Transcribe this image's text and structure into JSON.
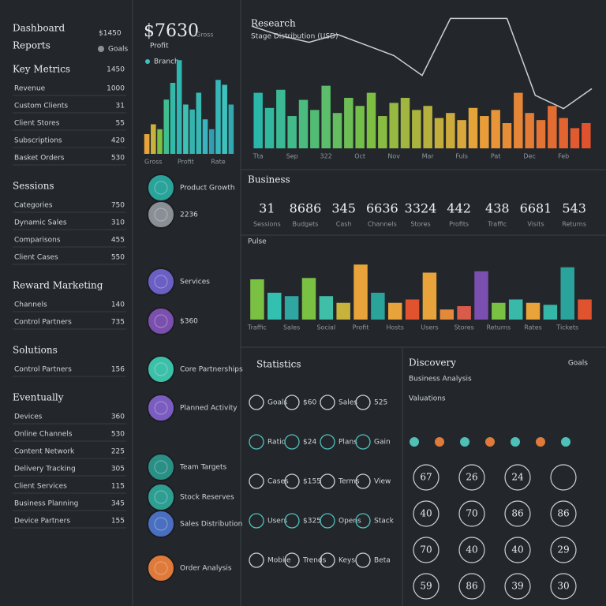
{
  "sidebar": {
    "title": "Dashboard",
    "title_value": "$1450",
    "subtitle": "Reports",
    "subtitle_value": "Goals",
    "sections": [
      {
        "heading": "Key Metrics",
        "heading_value": "1450",
        "items": [
          {
            "label": "Revenue",
            "value": "1000"
          },
          {
            "label": "Custom Clients",
            "value": "31"
          },
          {
            "label": "Client Stores",
            "value": "55"
          },
          {
            "label": "Subscriptions",
            "value": "420"
          },
          {
            "label": "Basket Orders",
            "value": "530"
          }
        ]
      },
      {
        "heading": "Sessions",
        "items": [
          {
            "label": "Categories",
            "value": "750"
          },
          {
            "label": "Dynamic Sales",
            "value": "310"
          },
          {
            "label": "Comparisons",
            "value": "455"
          },
          {
            "label": "Client Cases",
            "value": "550"
          }
        ]
      },
      {
        "heading": "Reward Marketing",
        "items": [
          {
            "label": "Channels",
            "value": "140"
          },
          {
            "label": "Control Partners",
            "value": "735"
          }
        ]
      },
      {
        "heading": "Solutions",
        "items": [
          {
            "label": "Control Partners",
            "value": "156"
          }
        ]
      },
      {
        "heading": "Eventually",
        "items": [
          {
            "label": "Devices",
            "value": "360"
          },
          {
            "label": "Online Channels",
            "value": "530"
          },
          {
            "label": "Content Network",
            "value": "225"
          },
          {
            "label": "Delivery Tracking",
            "value": "305"
          },
          {
            "label": "Client Services",
            "value": "115"
          },
          {
            "label": "Business Planning",
            "value": "345"
          },
          {
            "label": "Device Partners",
            "value": "155"
          }
        ]
      }
    ]
  },
  "summary": {
    "value": "$7630",
    "value_note": "Gross",
    "label": "Profit",
    "legend": "Branch"
  },
  "circle_items": [
    {
      "label": "Product Growth",
      "color": "#2aa39a"
    },
    {
      "label": "2236",
      "color": "#8a8f96"
    },
    {
      "label": "Services",
      "color": "#6b5fc4"
    },
    {
      "label": "$360",
      "color": "#7a4fae"
    },
    {
      "label": "Core Partnerships",
      "color": "#3cc1a8"
    },
    {
      "label": "Planned Activity",
      "color": "#7b5cc0"
    },
    {
      "label": "Team Targets",
      "color": "#2a8f85"
    },
    {
      "label": "Stock Reserves",
      "color": "#2f9e92"
    },
    {
      "label": "Sales Distribution",
      "color": "#4a6fc0"
    },
    {
      "label": "Order Analysis",
      "color": "#e07a3a"
    }
  ],
  "chart_data": [
    {
      "type": "bar",
      "categories": [
        null,
        "Gross",
        null,
        null,
        null,
        null,
        "Profit",
        null,
        null,
        null,
        null,
        "Rate",
        null,
        null
      ],
      "values": [
        20,
        30,
        25,
        55,
        72,
        95,
        50,
        45,
        62,
        35,
        25,
        75,
        70,
        50
      ],
      "colors": [
        "#e8a33a",
        "#c9b23c",
        "#7ac043",
        "#3fbf8f",
        "#32b9a8",
        "#2fb6b0",
        "#3ec1b4",
        "#35b3ae",
        "#38b8b2",
        "#3ab4c0",
        "#2f9fb0",
        "#36b7b9",
        "#3ec0bc",
        "#32a8b0"
      ],
      "ylim": [
        0,
        100
      ]
    },
    {
      "type": "bar",
      "title": "Research",
      "subtitle": "Stage Distribution (USD)",
      "categories": [
        "Tta",
        null,
        null,
        "Sep",
        null,
        null,
        "322",
        null,
        null,
        "Oct",
        null,
        null,
        "Nov",
        null,
        null,
        "Mar",
        null,
        null,
        "Fuls",
        null,
        null,
        "Pat",
        null,
        null,
        "Dec",
        null,
        null,
        "Feb",
        null,
        null
      ],
      "values": [
        55,
        40,
        58,
        32,
        48,
        38,
        62,
        35,
        50,
        42,
        55,
        32,
        45,
        50,
        38,
        42,
        30,
        35,
        28,
        40,
        32,
        38,
        25,
        55,
        35,
        28,
        42,
        30,
        20,
        25
      ],
      "color_stops": [
        "#2ab7a9",
        "#7ac043",
        "#e8a33a",
        "#e1532f"
      ],
      "line": {
        "color": "#c8d0d6",
        "values": [
          92,
          85,
          80,
          86,
          78,
          70,
          55,
          98,
          98,
          98,
          40,
          30,
          45
        ]
      },
      "ylim": [
        0,
        100
      ]
    },
    {
      "type": "bar",
      "title": "Pulse",
      "categories": [
        "Traffic",
        null,
        "Sales",
        null,
        "Social",
        null,
        "Profit",
        null,
        "Hosts",
        null,
        "Users",
        null,
        "Stores",
        null,
        "Returns",
        null,
        "Rates",
        null,
        "Tickets",
        null
      ],
      "values": [
        60,
        40,
        35,
        62,
        35,
        25,
        82,
        40,
        25,
        30,
        70,
        15,
        20,
        72,
        25,
        30,
        25,
        22,
        78,
        30
      ],
      "colors": [
        "#7ac043",
        "#34c0b0",
        "#2fa7a0",
        "#7ac043",
        "#3fbfa8",
        "#c7b23c",
        "#e8a33a",
        "#2aa39a",
        "#e8a33a",
        "#e1532f",
        "#e8a33a",
        "#e38a3a",
        "#d95c4a",
        "#7b4fb0",
        "#7ac043",
        "#38b9a9",
        "#e8a33a",
        "#34b7a6",
        "#2aa39a",
        "#e1532f"
      ],
      "ylim": [
        0,
        100
      ]
    }
  ],
  "kpis": {
    "title": "Business",
    "items": [
      {
        "value": 31,
        "note": "Sessions"
      },
      {
        "value": 8686,
        "note": "Budgets"
      },
      {
        "value": 345,
        "note": "Cash"
      },
      {
        "value": 6636,
        "note": "Channels"
      },
      {
        "value": 3324,
        "note": "Stores"
      },
      {
        "value": 442,
        "note": "Profits"
      },
      {
        "value": 438,
        "note": "Traffic"
      },
      {
        "value": 6681,
        "note": "Visits"
      },
      {
        "value": 543,
        "note": "Returns"
      }
    ]
  },
  "statistics": {
    "title": "Statistics",
    "cells": [
      "Goals",
      "$60",
      "Sales",
      "525",
      "Ratio",
      "$24",
      "Plans",
      "Gain",
      "Cases",
      "$155",
      "Terms",
      "View",
      "Users",
      "$325",
      "Opens",
      "Stack",
      "Mobile",
      "Trends",
      "Keys",
      "Beta"
    ]
  },
  "discovery": {
    "title": "Discovery",
    "title_value": "Goals",
    "subtitle": "Business Analysis",
    "note": "Valuations",
    "rings": [
      "67",
      "26",
      "24",
      "",
      "40",
      "70",
      "86",
      "86",
      "70",
      "40",
      "40",
      "29",
      "59",
      "86",
      "39",
      "30"
    ]
  }
}
